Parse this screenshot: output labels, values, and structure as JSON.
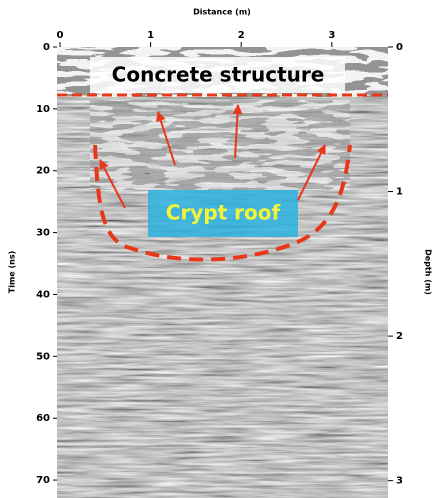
{
  "chart_data": {
    "type": "radargram",
    "x_label": "Distance (m)",
    "y_label": "Time (ns)",
    "y2_label": "Depth (m)",
    "xlim": [
      0,
      3.62
    ],
    "xticks": [
      0,
      1,
      2,
      3
    ],
    "ylim": [
      0,
      72.9
    ],
    "yticks": [
      0,
      10,
      20,
      30,
      40,
      50,
      60,
      70
    ],
    "y2lim": [
      0,
      3.12
    ],
    "y2ticks": [
      0,
      1,
      2,
      3
    ],
    "annotations": [
      "Concrete structure",
      "Crypt roof"
    ]
  }
}
